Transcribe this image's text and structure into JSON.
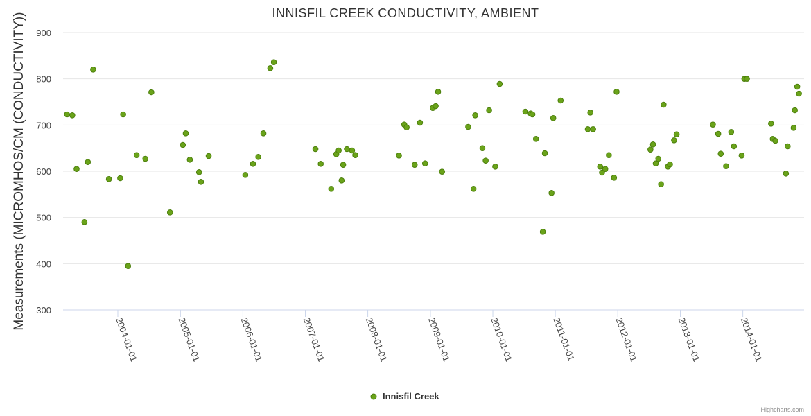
{
  "chart_data": {
    "type": "scatter",
    "title": "INNISFIL CREEK CONDUCTIVITY, AMBIENT",
    "ylabel": "Measurements (MICROMHOS/CM (CONDUCTIVITY))",
    "xlabel": "",
    "x_axis_type": "datetime",
    "xlim": [
      "2003-02-15",
      "2014-12-25"
    ],
    "ylim": [
      300,
      900
    ],
    "y_ticks": [
      300,
      400,
      500,
      600,
      700,
      800,
      900
    ],
    "x_ticks": [
      "2004-01-01",
      "2005-01-01",
      "2006-01-01",
      "2007-01-01",
      "2008-01-01",
      "2009-01-01",
      "2010-01-01",
      "2011-01-01",
      "2012-01-01",
      "2013-01-01",
      "2014-01-01"
    ],
    "grid": true,
    "legend_position": "bottom-center",
    "colors": {
      "marker_fill": "#6aa31a",
      "marker_stroke": "#4c7f0c",
      "grid": "#e6e6e6",
      "axis": "#ccd6eb"
    },
    "series": [
      {
        "name": "Innisfil Creek",
        "points": [
          [
            "2003-03-10",
            723
          ],
          [
            "2003-04-10",
            721
          ],
          [
            "2003-05-05",
            605
          ],
          [
            "2003-06-20",
            490
          ],
          [
            "2003-07-10",
            620
          ],
          [
            "2003-08-10",
            820
          ],
          [
            "2003-11-10",
            583
          ],
          [
            "2004-01-15",
            585
          ],
          [
            "2004-02-01",
            723
          ],
          [
            "2004-03-01",
            395
          ],
          [
            "2004-04-20",
            635
          ],
          [
            "2004-06-10",
            627
          ],
          [
            "2004-07-15",
            771
          ],
          [
            "2004-11-01",
            511
          ],
          [
            "2005-01-15",
            657
          ],
          [
            "2005-02-01",
            682
          ],
          [
            "2005-02-25",
            625
          ],
          [
            "2005-04-20",
            598
          ],
          [
            "2005-05-01",
            577
          ],
          [
            "2005-06-15",
            633
          ],
          [
            "2006-01-15",
            592
          ],
          [
            "2006-03-01",
            616
          ],
          [
            "2006-04-01",
            631
          ],
          [
            "2006-05-01",
            682
          ],
          [
            "2006-06-10",
            823
          ],
          [
            "2006-07-01",
            836
          ],
          [
            "2007-03-01",
            648
          ],
          [
            "2007-04-01",
            616
          ],
          [
            "2007-06-01",
            562
          ],
          [
            "2007-07-01",
            637
          ],
          [
            "2007-07-15",
            645
          ],
          [
            "2007-08-01",
            580
          ],
          [
            "2007-08-10",
            614
          ],
          [
            "2007-09-01",
            648
          ],
          [
            "2007-10-01",
            645
          ],
          [
            "2007-10-20",
            635
          ],
          [
            "2008-07-01",
            634
          ],
          [
            "2008-08-01",
            701
          ],
          [
            "2008-08-15",
            695
          ],
          [
            "2008-10-01",
            614
          ],
          [
            "2008-11-01",
            705
          ],
          [
            "2008-12-01",
            617
          ],
          [
            "2009-01-15",
            737
          ],
          [
            "2009-02-01",
            741
          ],
          [
            "2009-02-15",
            772
          ],
          [
            "2009-03-10",
            599
          ],
          [
            "2009-08-10",
            696
          ],
          [
            "2009-09-10",
            562
          ],
          [
            "2009-09-20",
            721
          ],
          [
            "2009-11-01",
            650
          ],
          [
            "2009-11-20",
            623
          ],
          [
            "2009-12-10",
            732
          ],
          [
            "2010-01-15",
            610
          ],
          [
            "2010-02-10",
            789
          ],
          [
            "2010-07-10",
            729
          ],
          [
            "2010-08-10",
            725
          ],
          [
            "2010-08-20",
            723
          ],
          [
            "2010-09-10",
            670
          ],
          [
            "2010-10-20",
            469
          ],
          [
            "2010-11-01",
            639
          ],
          [
            "2010-12-10",
            553
          ],
          [
            "2010-12-20",
            715
          ],
          [
            "2011-02-01",
            753
          ],
          [
            "2011-07-10",
            691
          ],
          [
            "2011-07-25",
            727
          ],
          [
            "2011-08-10",
            691
          ],
          [
            "2011-09-20",
            610
          ],
          [
            "2011-10-01",
            597
          ],
          [
            "2011-10-20",
            605
          ],
          [
            "2011-11-10",
            635
          ],
          [
            "2011-12-10",
            586
          ],
          [
            "2011-12-25",
            772
          ],
          [
            "2012-07-10",
            647
          ],
          [
            "2012-07-25",
            658
          ],
          [
            "2012-08-10",
            617
          ],
          [
            "2012-08-25",
            627
          ],
          [
            "2012-09-10",
            572
          ],
          [
            "2012-09-25",
            744
          ],
          [
            "2012-10-20",
            610
          ],
          [
            "2012-11-01",
            615
          ],
          [
            "2012-11-25",
            667
          ],
          [
            "2012-12-10",
            680
          ],
          [
            "2013-07-10",
            701
          ],
          [
            "2013-08-10",
            681
          ],
          [
            "2013-08-25",
            638
          ],
          [
            "2013-09-25",
            611
          ],
          [
            "2013-10-25",
            685
          ],
          [
            "2013-11-10",
            654
          ],
          [
            "2013-12-25",
            634
          ],
          [
            "2014-01-10",
            800
          ],
          [
            "2014-01-25",
            800
          ],
          [
            "2014-06-15",
            703
          ],
          [
            "2014-06-25",
            670
          ],
          [
            "2014-07-10",
            666
          ],
          [
            "2014-09-10",
            595
          ],
          [
            "2014-09-20",
            654
          ],
          [
            "2014-10-25",
            694
          ],
          [
            "2014-11-01",
            732
          ],
          [
            "2014-11-15",
            783
          ],
          [
            "2014-11-25",
            768
          ]
        ]
      }
    ],
    "credit": "Highcharts.com"
  }
}
